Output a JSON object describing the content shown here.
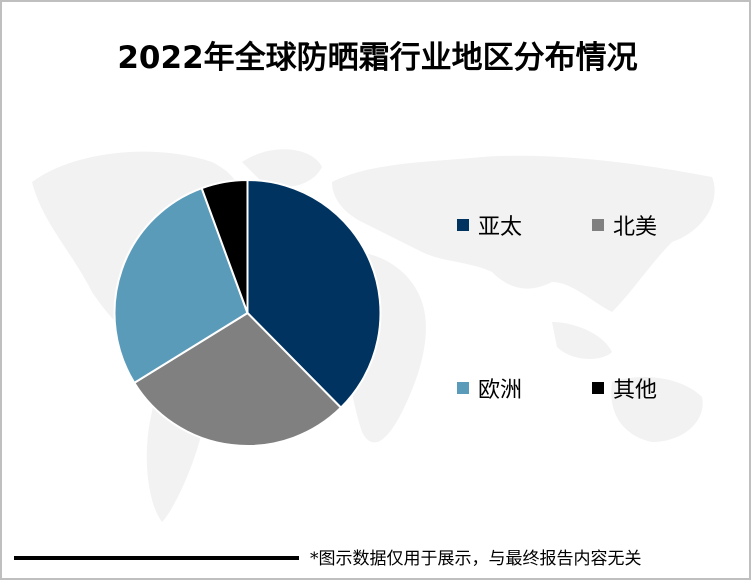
{
  "title": "2022年全球防晒霜行业地区分布情况",
  "footer_note": "*图示数据仅用于展示，与最终报告内容无关",
  "legend": [
    {
      "label": "亚太",
      "color": "#003360"
    },
    {
      "label": "北美",
      "color": "#808080"
    },
    {
      "label": "欧洲",
      "color": "#5b9bba"
    },
    {
      "label": "其他",
      "color": "#000000"
    }
  ],
  "chart_data": {
    "type": "pie",
    "title": "2022年全球防晒霜行业地区分布情况",
    "categories": [
      "亚太",
      "北美",
      "欧洲",
      "其他"
    ],
    "values": [
      37.6,
      28.6,
      28.2,
      5.6
    ],
    "unit": "%",
    "colors": [
      "#003360",
      "#808080",
      "#5b9bba",
      "#000000"
    ],
    "start_angle": "12 o'clock, clockwise",
    "legend_position": "right",
    "data_labels": false
  }
}
